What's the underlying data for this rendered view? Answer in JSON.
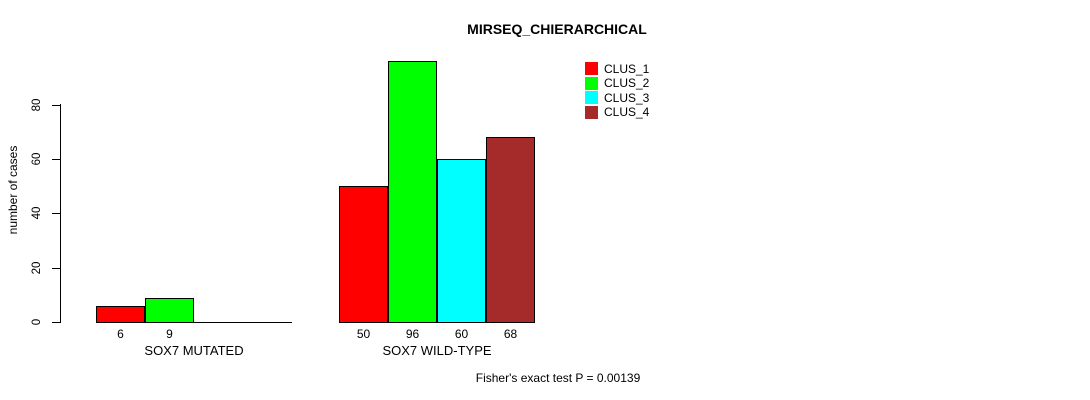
{
  "chart_data": {
    "type": "bar",
    "title": "MIRSEQ_CHIERARCHICAL",
    "ylabel": "number of cases",
    "xlabel": "",
    "yticks": [
      0,
      20,
      40,
      60,
      80
    ],
    "ylim": [
      0,
      80
    ],
    "grid": false,
    "legend_position": "top-right",
    "legend": [
      {
        "label": "CLUS_1",
        "color": "#FF0000"
      },
      {
        "label": "CLUS_2",
        "color": "#00FF00"
      },
      {
        "label": "CLUS_3",
        "color": "#00FFFF"
      },
      {
        "label": "CLUS_4",
        "color": "#A52A2A"
      }
    ],
    "categories": [
      "SOX7 MUTATED",
      "SOX7 WILD-TYPE"
    ],
    "groups": [
      {
        "label": "SOX7 MUTATED",
        "values": [
          6,
          9,
          0,
          0
        ]
      },
      {
        "label": "SOX7 WILD-TYPE",
        "values": [
          50,
          96,
          60,
          68
        ]
      }
    ],
    "bar_labels_shown_when": "value > 0",
    "annotation": "Fisher's exact test P = 0.00139",
    "colors": {
      "bar_border": "#000000",
      "axis": "#000000",
      "text": "#000000",
      "background": "#FFFFFF"
    }
  }
}
